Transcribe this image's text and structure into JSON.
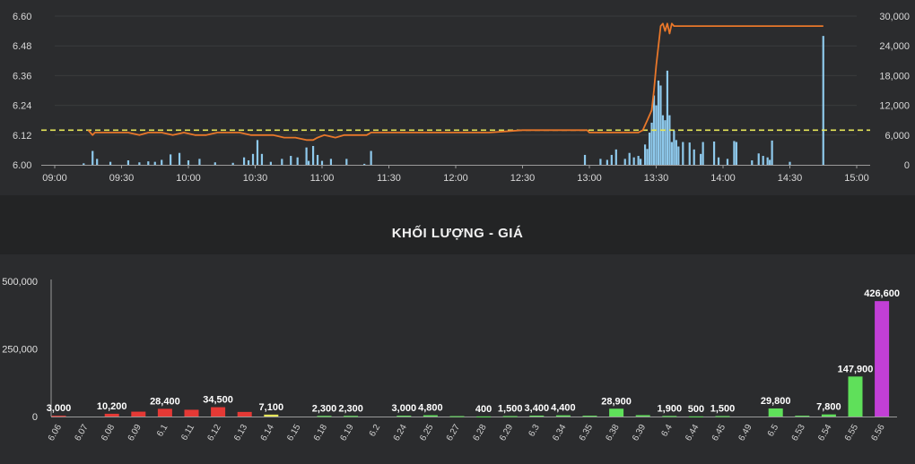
{
  "title": "KHỐI LƯỢNG - GIÁ",
  "chart_data": [
    {
      "type": "line",
      "title": "",
      "x_ticks": [
        "09:00",
        "09:30",
        "10:00",
        "10:30",
        "11:00",
        "11:30",
        "12:00",
        "12:30",
        "13:00",
        "13:30",
        "14:00",
        "14:30",
        "15:00"
      ],
      "y_left_ticks": [
        "6.60",
        "6.48",
        "6.36",
        "6.24",
        "6.12",
        "6.00"
      ],
      "y_left_range": [
        6.0,
        6.6
      ],
      "y_right_ticks": [
        "30,000",
        "24,000",
        "18,000",
        "12,000",
        "6,000",
        "0"
      ],
      "y_right_range": [
        0,
        30000
      ],
      "reference_price": 6.14,
      "colors": {
        "price": "#e8772a",
        "volume": "#8ec9ec",
        "reference": "#e6e65a",
        "grid": "#3a3b3d"
      },
      "price_series": [
        [
          "09:15",
          6.14
        ],
        [
          "09:17",
          6.12
        ],
        [
          "09:18",
          6.13
        ],
        [
          "09:22",
          6.13
        ],
        [
          "09:28",
          6.13
        ],
        [
          "09:33",
          6.13
        ],
        [
          "09:38",
          6.12
        ],
        [
          "09:42",
          6.13
        ],
        [
          "09:48",
          6.13
        ],
        [
          "09:53",
          6.12
        ],
        [
          "09:58",
          6.13
        ],
        [
          "10:03",
          6.12
        ],
        [
          "10:08",
          6.12
        ],
        [
          "10:13",
          6.13
        ],
        [
          "10:17",
          6.13
        ],
        [
          "10:23",
          6.13
        ],
        [
          "10:28",
          6.12
        ],
        [
          "10:33",
          6.12
        ],
        [
          "10:38",
          6.12
        ],
        [
          "10:43",
          6.11
        ],
        [
          "10:48",
          6.11
        ],
        [
          "10:53",
          6.1
        ],
        [
          "10:56",
          6.1
        ],
        [
          "10:58",
          6.11
        ],
        [
          "11:01",
          6.12
        ],
        [
          "11:06",
          6.11
        ],
        [
          "11:10",
          6.12
        ],
        [
          "11:15",
          6.12
        ],
        [
          "11:20",
          6.12
        ],
        [
          "11:22",
          6.13
        ],
        [
          "11:30",
          6.13
        ],
        [
          "11:45",
          6.13
        ],
        [
          "12:00",
          6.13
        ],
        [
          "12:15",
          6.13
        ],
        [
          "12:30",
          6.14
        ],
        [
          "12:45",
          6.14
        ],
        [
          "12:59",
          6.14
        ],
        [
          "13:00",
          6.13
        ],
        [
          "13:05",
          6.13
        ],
        [
          "13:12",
          6.13
        ],
        [
          "13:18",
          6.13
        ],
        [
          "13:22",
          6.13
        ],
        [
          "13:24",
          6.14
        ],
        [
          "13:26",
          6.18
        ],
        [
          "13:28",
          6.22
        ],
        [
          "13:29",
          6.3
        ],
        [
          "13:30",
          6.4
        ],
        [
          "13:31",
          6.48
        ],
        [
          "13:32",
          6.56
        ],
        [
          "13:33",
          6.57
        ],
        [
          "13:34",
          6.54
        ],
        [
          "13:35",
          6.57
        ],
        [
          "13:36",
          6.53
        ],
        [
          "13:37",
          6.57
        ],
        [
          "13:38",
          6.56
        ],
        [
          "13:45",
          6.56
        ],
        [
          "14:00",
          6.56
        ],
        [
          "14:20",
          6.56
        ],
        [
          "14:35",
          6.56
        ],
        [
          "14:45",
          6.56
        ]
      ],
      "volume_series": [
        [
          "09:13",
          300
        ],
        [
          "09:17",
          2800
        ],
        [
          "09:19",
          1200
        ],
        [
          "09:25",
          600
        ],
        [
          "09:33",
          900
        ],
        [
          "09:38",
          500
        ],
        [
          "09:42",
          700
        ],
        [
          "09:45",
          600
        ],
        [
          "09:48",
          1000
        ],
        [
          "09:52",
          2100
        ],
        [
          "09:56",
          2400
        ],
        [
          "10:00",
          900
        ],
        [
          "10:05",
          1200
        ],
        [
          "10:12",
          500
        ],
        [
          "10:20",
          400
        ],
        [
          "10:25",
          1500
        ],
        [
          "10:27",
          900
        ],
        [
          "10:29",
          2200
        ],
        [
          "10:31",
          5000
        ],
        [
          "10:33",
          2200
        ],
        [
          "10:37",
          600
        ],
        [
          "10:42",
          1200
        ],
        [
          "10:46",
          1800
        ],
        [
          "10:49",
          1500
        ],
        [
          "10:53",
          3500
        ],
        [
          "10:54",
          800
        ],
        [
          "10:56",
          3800
        ],
        [
          "10:58",
          2000
        ],
        [
          "11:00",
          800
        ],
        [
          "11:04",
          1200
        ],
        [
          "11:11",
          1200
        ],
        [
          "11:19",
          200
        ],
        [
          "11:22",
          2800
        ],
        [
          "12:58",
          2000
        ],
        [
          "13:05",
          1200
        ],
        [
          "13:08",
          1000
        ],
        [
          "13:10",
          2000
        ],
        [
          "13:12",
          3100
        ],
        [
          "13:16",
          1200
        ],
        [
          "13:18",
          2400
        ],
        [
          "13:20",
          1500
        ],
        [
          "13:22",
          1800
        ],
        [
          "13:23",
          1200
        ],
        [
          "13:25",
          4100
        ],
        [
          "13:26",
          3200
        ],
        [
          "13:27",
          6500
        ],
        [
          "13:28",
          8500
        ],
        [
          "13:29",
          14000
        ],
        [
          "13:30",
          12000
        ],
        [
          "13:31",
          17000
        ],
        [
          "13:32",
          16000
        ],
        [
          "13:33",
          10000
        ],
        [
          "13:34",
          9000
        ],
        [
          "13:35",
          19000
        ],
        [
          "13:36",
          10000
        ],
        [
          "13:37",
          4600
        ],
        [
          "13:38",
          6900
        ],
        [
          "13:39",
          5000
        ],
        [
          "13:40",
          3700
        ],
        [
          "13:42",
          4600
        ],
        [
          "13:45",
          4500
        ],
        [
          "13:47",
          3100
        ],
        [
          "13:50",
          2200
        ],
        [
          "13:51",
          4600
        ],
        [
          "13:56",
          4700
        ],
        [
          "13:58",
          1500
        ],
        [
          "14:02",
          1200
        ],
        [
          "14:05",
          4800
        ],
        [
          "14:06",
          4600
        ],
        [
          "14:13",
          900
        ],
        [
          "14:16",
          2300
        ],
        [
          "14:18",
          1800
        ],
        [
          "14:20",
          1500
        ],
        [
          "14:21",
          1000
        ],
        [
          "14:22",
          4900
        ],
        [
          "14:30",
          600
        ],
        [
          "14:45",
          26000
        ]
      ]
    },
    {
      "type": "bar",
      "title": "KHỐI LƯỢNG - GIÁ",
      "y_ticks": [
        "500,000",
        "250,000",
        "0"
      ],
      "ylim": [
        0,
        500000
      ],
      "categories": [
        "6.06",
        "6.07",
        "6.08",
        "6.09",
        "6.1",
        "6.11",
        "6.12",
        "6.13",
        "6.14",
        "6.15",
        "6.18",
        "6.19",
        "6.2",
        "6.24",
        "6.25",
        "6.27",
        "6.28",
        "6.29",
        "6.3",
        "6.34",
        "6.35",
        "6.38",
        "6.39",
        "6.4",
        "6.44",
        "6.45",
        "6.49",
        "6.5",
        "6.53",
        "6.54",
        "6.55",
        "6.56"
      ],
      "values": [
        3000,
        0,
        10200,
        18000,
        28400,
        25000,
        34500,
        17000,
        7100,
        0,
        2300,
        2300,
        0,
        3000,
        4800,
        1500,
        400,
        1500,
        3400,
        4400,
        3000,
        28900,
        5000,
        1900,
        500,
        1500,
        0,
        29800,
        3000,
        7800,
        147900,
        426600
      ],
      "data_labels": [
        "3,000",
        "",
        "10,200",
        "",
        "28,400",
        "",
        "34,500",
        "",
        "7,100",
        "",
        "2,300",
        "2,300",
        "",
        "3,000",
        "4,800",
        "",
        "400",
        "1,500",
        "3,400",
        "4,400",
        "",
        "28,900",
        "",
        "1,900",
        "500",
        "1,500",
        "",
        "29,800",
        "",
        "7,800",
        "147,900",
        "426,600"
      ],
      "bar_colors": [
        "#e53935",
        "#e53935",
        "#e53935",
        "#e53935",
        "#e53935",
        "#e53935",
        "#e53935",
        "#e53935",
        "#e6e65a",
        "#e6e65a",
        "#5fe05a",
        "#5fe05a",
        "#5fe05a",
        "#5fe05a",
        "#5fe05a",
        "#5fe05a",
        "#5fe05a",
        "#5fe05a",
        "#5fe05a",
        "#5fe05a",
        "#5fe05a",
        "#5fe05a",
        "#5fe05a",
        "#5fe05a",
        "#5fe05a",
        "#5fe05a",
        "#5fe05a",
        "#5fe05a",
        "#5fe05a",
        "#5fe05a",
        "#5fe05a",
        "#c23fd6"
      ]
    }
  ]
}
